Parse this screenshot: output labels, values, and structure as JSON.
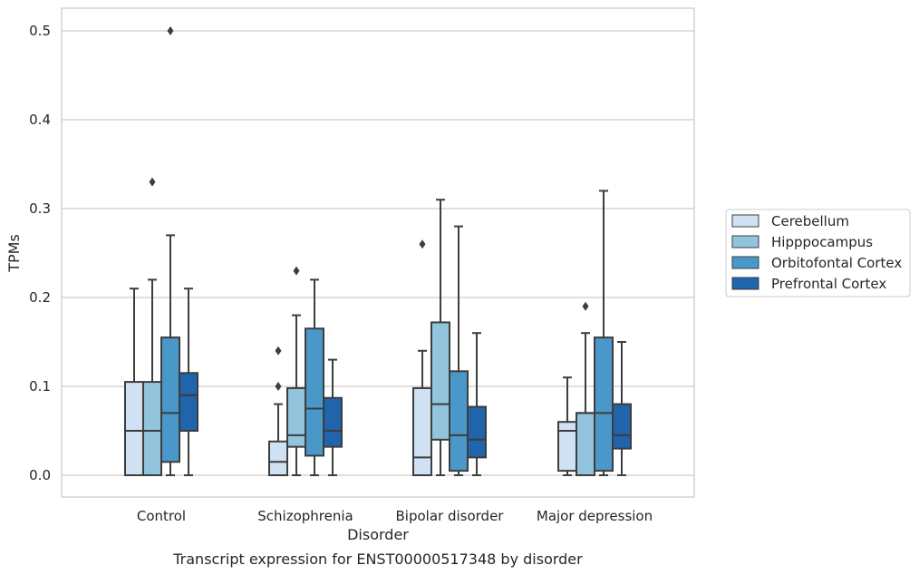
{
  "chart_data": {
    "type": "box",
    "title": "",
    "caption": "Transcript expression for ENST00000517348 by disorder",
    "xlabel": "Disorder",
    "ylabel": "TPMs",
    "ylim": [
      -0.025,
      0.525
    ],
    "yticks": [
      0.0,
      0.1,
      0.2,
      0.3,
      0.4,
      0.5
    ],
    "ytick_labels": [
      "0.0",
      "0.1",
      "0.2",
      "0.3",
      "0.4",
      "0.5"
    ],
    "grid": "horizontal",
    "legend_position": "right-center",
    "categories": [
      "Control",
      "Schizophrenia",
      "Bipolar disorder",
      "Major depression"
    ],
    "series": [
      {
        "name": "Cerebellum",
        "color": "#cfe1f2",
        "boxes": [
          {
            "whislo": 0.0,
            "q1": 0.0,
            "med": 0.05,
            "q3": 0.105,
            "whishi": 0.21,
            "fliers": []
          },
          {
            "whislo": 0.0,
            "q1": 0.0,
            "med": 0.015,
            "q3": 0.038,
            "whishi": 0.08,
            "fliers": [
              0.1,
              0.14
            ]
          },
          {
            "whislo": 0.0,
            "q1": 0.0,
            "med": 0.02,
            "q3": 0.098,
            "whishi": 0.14,
            "fliers": [
              0.26
            ]
          },
          {
            "whislo": 0.0,
            "q1": 0.005,
            "med": 0.05,
            "q3": 0.06,
            "whishi": 0.11,
            "fliers": []
          }
        ]
      },
      {
        "name": "Hipppocampus",
        "color": "#93c4de",
        "boxes": [
          {
            "whislo": 0.0,
            "q1": 0.0,
            "med": 0.05,
            "q3": 0.105,
            "whishi": 0.22,
            "fliers": [
              0.33
            ]
          },
          {
            "whislo": 0.0,
            "q1": 0.032,
            "med": 0.045,
            "q3": 0.098,
            "whishi": 0.18,
            "fliers": [
              0.23
            ]
          },
          {
            "whislo": 0.0,
            "q1": 0.04,
            "med": 0.08,
            "q3": 0.172,
            "whishi": 0.31,
            "fliers": []
          },
          {
            "whislo": 0.0,
            "q1": 0.0,
            "med": 0.07,
            "q3": 0.07,
            "whishi": 0.16,
            "fliers": [
              0.19
            ]
          }
        ]
      },
      {
        "name": "Orbitofontal Cortex",
        "color": "#4a98c9",
        "boxes": [
          {
            "whislo": 0.0,
            "q1": 0.015,
            "med": 0.07,
            "q3": 0.155,
            "whishi": 0.27,
            "fliers": [
              0.5
            ]
          },
          {
            "whislo": 0.0,
            "q1": 0.022,
            "med": 0.075,
            "q3": 0.165,
            "whishi": 0.22,
            "fliers": []
          },
          {
            "whislo": 0.0,
            "q1": 0.005,
            "med": 0.045,
            "q3": 0.117,
            "whishi": 0.28,
            "fliers": []
          },
          {
            "whislo": 0.0,
            "q1": 0.005,
            "med": 0.07,
            "q3": 0.155,
            "whishi": 0.32,
            "fliers": []
          }
        ]
      },
      {
        "name": "Prefrontal Cortex",
        "color": "#2064ab",
        "boxes": [
          {
            "whislo": 0.0,
            "q1": 0.05,
            "med": 0.09,
            "q3": 0.115,
            "whishi": 0.21,
            "fliers": []
          },
          {
            "whislo": 0.0,
            "q1": 0.032,
            "med": 0.05,
            "q3": 0.087,
            "whishi": 0.13,
            "fliers": []
          },
          {
            "whislo": 0.0,
            "q1": 0.02,
            "med": 0.04,
            "q3": 0.077,
            "whishi": 0.16,
            "fliers": []
          },
          {
            "whislo": 0.0,
            "q1": 0.03,
            "med": 0.045,
            "q3": 0.08,
            "whishi": 0.15,
            "fliers": []
          }
        ]
      }
    ]
  }
}
